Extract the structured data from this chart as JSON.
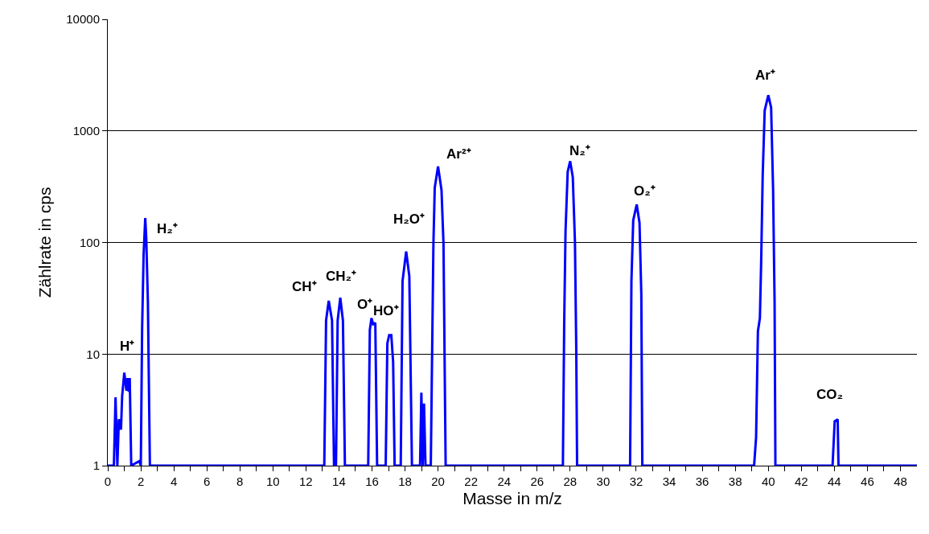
{
  "chart_data": {
    "type": "line",
    "xlabel": "Masse in m/z",
    "ylabel": "Zählrate in cps",
    "x": [
      0,
      0.37,
      0.47,
      0.58,
      0.67,
      0.8,
      0.87,
      1.0,
      1.13,
      1.2,
      1.27,
      1.33,
      1.42,
      1.92,
      2.0,
      2.08,
      2.17,
      2.27,
      2.33,
      2.43,
      2.55,
      13.11,
      13.22,
      13.38,
      13.58,
      13.7,
      13.82,
      13.92,
      14.08,
      14.24,
      14.36,
      15.77,
      15.87,
      15.97,
      16.07,
      16.2,
      16.31,
      16.83,
      16.93,
      17.04,
      17.17,
      17.28,
      17.37,
      17.74,
      17.85,
      18.07,
      18.26,
      18.42,
      18.91,
      18.99,
      19.07,
      19.15,
      19.24,
      19.56,
      19.72,
      19.8,
      20.0,
      20.21,
      20.33,
      20.46,
      27.56,
      27.64,
      27.72,
      27.85,
      28.0,
      28.16,
      28.29,
      28.37,
      28.42,
      31.63,
      31.71,
      31.82,
      32.03,
      32.2,
      32.31,
      32.37,
      39.14,
      39.26,
      39.37,
      39.49,
      39.57,
      39.66,
      39.78,
      40.0,
      40.17,
      40.29,
      40.38,
      40.43,
      43.89,
      44.02,
      44.2,
      44.25,
      49
    ],
    "series": [
      {
        "color": "#0000ff",
        "values": [
          1,
          1,
          4.1,
          1,
          2.6,
          2.1,
          4.2,
          6.8,
          4.7,
          6.1,
          4.6,
          6.1,
          1,
          1.1,
          1,
          17,
          78,
          166,
          109,
          29,
          1,
          1,
          20,
          30,
          20,
          1,
          1,
          20,
          32,
          20,
          1,
          1,
          16.5,
          21,
          18.5,
          19,
          1,
          1,
          12.5,
          14.8,
          14.8,
          8.5,
          1,
          1,
          45,
          83,
          50,
          1,
          1,
          4.5,
          1,
          3.6,
          1,
          1,
          97,
          310,
          480,
          295,
          97,
          1,
          1,
          19.5,
          127,
          430,
          535,
          385,
          102,
          11,
          1,
          1,
          45,
          158,
          219,
          150,
          34,
          1,
          1,
          1.8,
          16,
          21,
          70,
          400,
          1520,
          2090,
          1620,
          297,
          29,
          1,
          1,
          2.5,
          2.6,
          1,
          1
        ]
      }
    ],
    "log": "y",
    "ylim": [
      1,
      10000
    ],
    "yticks": [
      1,
      10,
      100,
      1000,
      10000
    ],
    "xlim": [
      0,
      49
    ],
    "xticks": [
      0,
      {
        "value": 1,
        "label": null
      },
      2,
      {
        "value": 3,
        "label": null
      },
      4,
      {
        "value": 5,
        "label": null
      },
      6,
      {
        "value": 7,
        "label": null
      },
      8,
      {
        "value": 9,
        "label": null
      },
      10,
      {
        "value": 11,
        "label": null
      },
      12,
      {
        "value": 13,
        "label": null
      },
      14,
      {
        "value": 15,
        "label": null
      },
      16,
      {
        "value": 17,
        "label": null
      },
      18,
      {
        "value": 19,
        "label": null
      },
      20,
      {
        "value": 21,
        "label": null
      },
      22,
      {
        "value": 23,
        "label": null
      },
      24,
      {
        "value": 25,
        "label": null
      },
      26,
      {
        "value": 27,
        "label": null
      },
      28,
      {
        "value": 29,
        "label": null
      },
      30,
      {
        "value": 31,
        "label": null
      },
      32,
      {
        "value": 33,
        "label": null
      },
      34,
      {
        "value": 35,
        "label": null
      },
      36,
      {
        "value": 37,
        "label": null
      },
      38,
      {
        "value": 39,
        "label": null
      },
      40,
      {
        "value": 41,
        "label": null
      },
      42,
      {
        "value": 43,
        "label": null
      },
      44,
      {
        "value": 45,
        "label": null
      },
      46,
      {
        "value": 47,
        "label": null
      },
      48
    ],
    "grid": "y",
    "marker": "none",
    "line_style": "solid",
    "annotations": [
      {
        "text": "H⁺",
        "x": 1.0,
        "y": 6.8
      },
      {
        "text": "H₂⁺",
        "x": 2.27,
        "y": 166
      },
      {
        "text": "CH⁺",
        "x": 13.38,
        "y": 30
      },
      {
        "text": "CH₂⁺",
        "x": 14.08,
        "y": 32
      },
      {
        "text": "O⁺",
        "x": 15.97,
        "y": 21
      },
      {
        "text": "HO⁺",
        "x": 17.04,
        "y": 14.8
      },
      {
        "text": "H₂O⁺",
        "x": 18.07,
        "y": 83
      },
      {
        "text": "Ar²⁺",
        "x": 20.0,
        "y": 480
      },
      {
        "text": "N₂⁺",
        "x": 28.0,
        "y": 535
      },
      {
        "text": "O₂⁺",
        "x": 32.03,
        "y": 219
      },
      {
        "text": "Ar⁺",
        "x": 40.0,
        "y": 2090
      },
      {
        "text": "CO₂",
        "x": 44.2,
        "y": 2.6
      }
    ]
  }
}
